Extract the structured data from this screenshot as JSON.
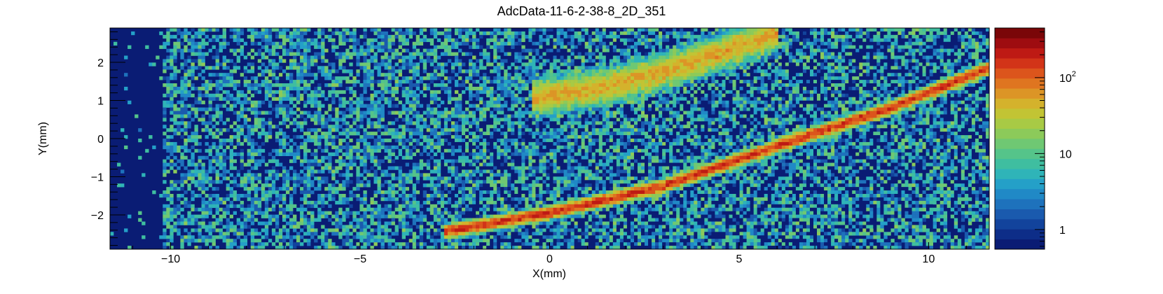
{
  "chart_data": {
    "type": "heatmap",
    "title": "AdcData-11-6-2-38-8_2D_351",
    "xlabel": "X(mm)",
    "ylabel": "Y(mm)",
    "xlim": [
      -11.6,
      11.6
    ],
    "ylim": [
      -2.9,
      2.9
    ],
    "x_ticks": [
      {
        "value": -10,
        "label": "−10"
      },
      {
        "value": -5,
        "label": "−5"
      },
      {
        "value": 0,
        "label": "0"
      },
      {
        "value": 5,
        "label": "5"
      },
      {
        "value": 10,
        "label": "10"
      }
    ],
    "y_ticks": [
      {
        "value": -2,
        "label": "−2"
      },
      {
        "value": -1,
        "label": "−1"
      },
      {
        "value": 0,
        "label": "0"
      },
      {
        "value": 1,
        "label": "1"
      },
      {
        "value": 2,
        "label": "2"
      }
    ],
    "color_scale": {
      "scale": "log",
      "zlim": [
        0.55,
        450
      ],
      "ticks": [
        {
          "value": 1,
          "label": "1",
          "sup": ""
        },
        {
          "value": 10,
          "label": "10",
          "sup": ""
        },
        {
          "value": 100,
          "label": "10",
          "sup": "2"
        }
      ],
      "colors": [
        "#0a1c74",
        "#0d2d88",
        "#12439c",
        "#1a5aae",
        "#1e72bc",
        "#2089c6",
        "#24a0c8",
        "#2fb4b8",
        "#3fbea0",
        "#55c48a",
        "#6fc873",
        "#8cca5a",
        "#a8ca45",
        "#c2c434",
        "#d4b22c",
        "#dc9526",
        "#df7520",
        "#dc551c",
        "#d23418",
        "#be1a14",
        "#9e0c10",
        "#7a0608"
      ]
    },
    "bands": [
      {
        "name": "",
        "points": [
          [
            -2.8,
            -2.45
          ],
          [
            0,
            -1.95
          ],
          [
            3,
            -1.25
          ],
          [
            6,
            -0.2
          ],
          [
            9,
            0.8
          ],
          [
            11.6,
            1.85
          ]
        ],
        "peak": 180,
        "width": 0.11
      },
      {
        "name": "",
        "points": [
          [
            -0.5,
            1.05
          ],
          [
            1.5,
            1.35
          ],
          [
            3,
            1.75
          ],
          [
            4.5,
            2.25
          ],
          [
            6,
            2.75
          ]
        ],
        "peak": 55,
        "width": 0.3
      }
    ],
    "background_level": 4,
    "empty_region_x": [
      -11.6,
      -10.2
    ],
    "grid": false,
    "legend": "colorbar-right"
  }
}
